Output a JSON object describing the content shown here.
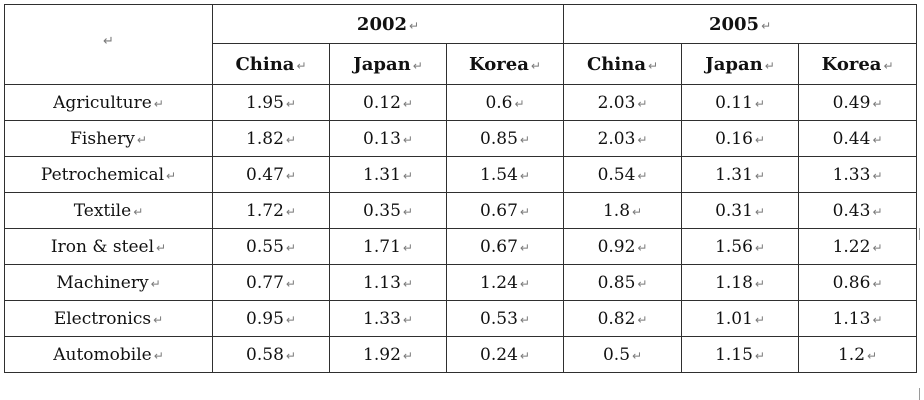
{
  "table": {
    "paragraph_mark": "↵",
    "year_groups": [
      "2002",
      "2005"
    ],
    "countries": [
      "China",
      "Japan",
      "Korea",
      "China",
      "Japan",
      "Korea"
    ],
    "rows": [
      {
        "sector": "Agriculture",
        "values": [
          "1.95",
          "0.12",
          "0.6",
          "2.03",
          "0.11",
          "0.49"
        ]
      },
      {
        "sector": "Fishery",
        "values": [
          "1.82",
          "0.13",
          "0.85",
          "2.03",
          "0.16",
          "0.44"
        ]
      },
      {
        "sector": "Petrochemical",
        "values": [
          "0.47",
          "1.31",
          "1.54",
          "0.54",
          "1.31",
          "1.33"
        ]
      },
      {
        "sector": "Textile",
        "values": [
          "1.72",
          "0.35",
          "0.67",
          "1.8",
          "0.31",
          "0.43"
        ]
      },
      {
        "sector": "Iron & steel",
        "values": [
          "0.55",
          "1.71",
          "0.67",
          "0.92",
          "1.56",
          "1.22"
        ]
      },
      {
        "sector": "Machinery",
        "values": [
          "0.77",
          "1.13",
          "1.24",
          "0.85",
          "1.18",
          "0.86"
        ]
      },
      {
        "sector": "Electronics",
        "values": [
          "0.95",
          "1.33",
          "0.53",
          "0.82",
          "1.01",
          "1.13"
        ]
      },
      {
        "sector": "Automobile",
        "values": [
          "0.58",
          "1.92",
          "0.24",
          "0.5",
          "1.15",
          "1.2"
        ]
      }
    ]
  }
}
